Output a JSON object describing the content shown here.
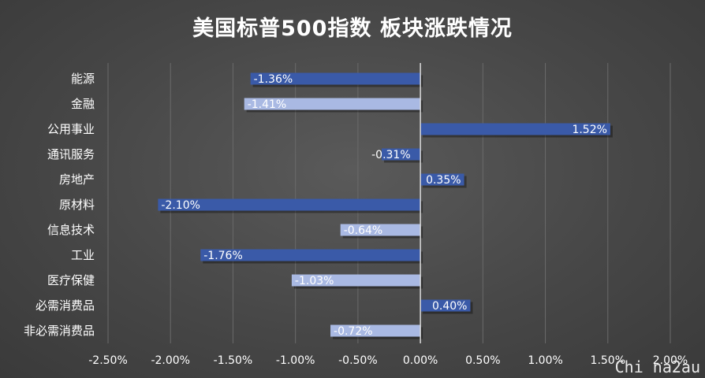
{
  "chart_data": {
    "type": "bar",
    "orientation": "horizontal",
    "title": "美国标普500指数 板块涨跌情况",
    "categories": [
      "能源",
      "金融",
      "公用事业",
      "通讯服务",
      "房地产",
      "原材料",
      "信息技术",
      "工业",
      "医疗保健",
      "必需消费品",
      "非必需消费品"
    ],
    "values": [
      -1.36,
      -1.41,
      1.52,
      -0.31,
      0.35,
      -2.1,
      -0.64,
      -1.76,
      -1.03,
      0.4,
      -0.72
    ],
    "data_labels": [
      "-1.36%",
      "-1.41%",
      "1.52%",
      "-0.31%",
      "0.35%",
      "-2.10%",
      "-0.64%",
      "-1.76%",
      "-1.03%",
      "0.40%",
      "-0.72%"
    ],
    "x_ticks": [
      "-2.50%",
      "-2.00%",
      "-1.50%",
      "-1.00%",
      "-0.50%",
      "0.00%",
      "0.50%",
      "1.00%",
      "1.50%",
      "2.00%"
    ],
    "xlim": [
      -2.5,
      2.0
    ],
    "xlabel": "",
    "ylabel": "",
    "grid": true,
    "colors": {
      "dark_bar": "#3a5aa8",
      "light_bar": "#a9b9e3",
      "label_on_dark": "#ffffff",
      "label_on_light": "#ffffff",
      "axis_text": "#ffffff",
      "grid": "#6a6a6a",
      "zero_line": "#d9d9d9"
    },
    "bar_styles": [
      "dark",
      "light",
      "dark",
      "dark",
      "dark",
      "dark",
      "light",
      "dark",
      "light",
      "dark",
      "light"
    ]
  },
  "watermark": "Chi na2au"
}
